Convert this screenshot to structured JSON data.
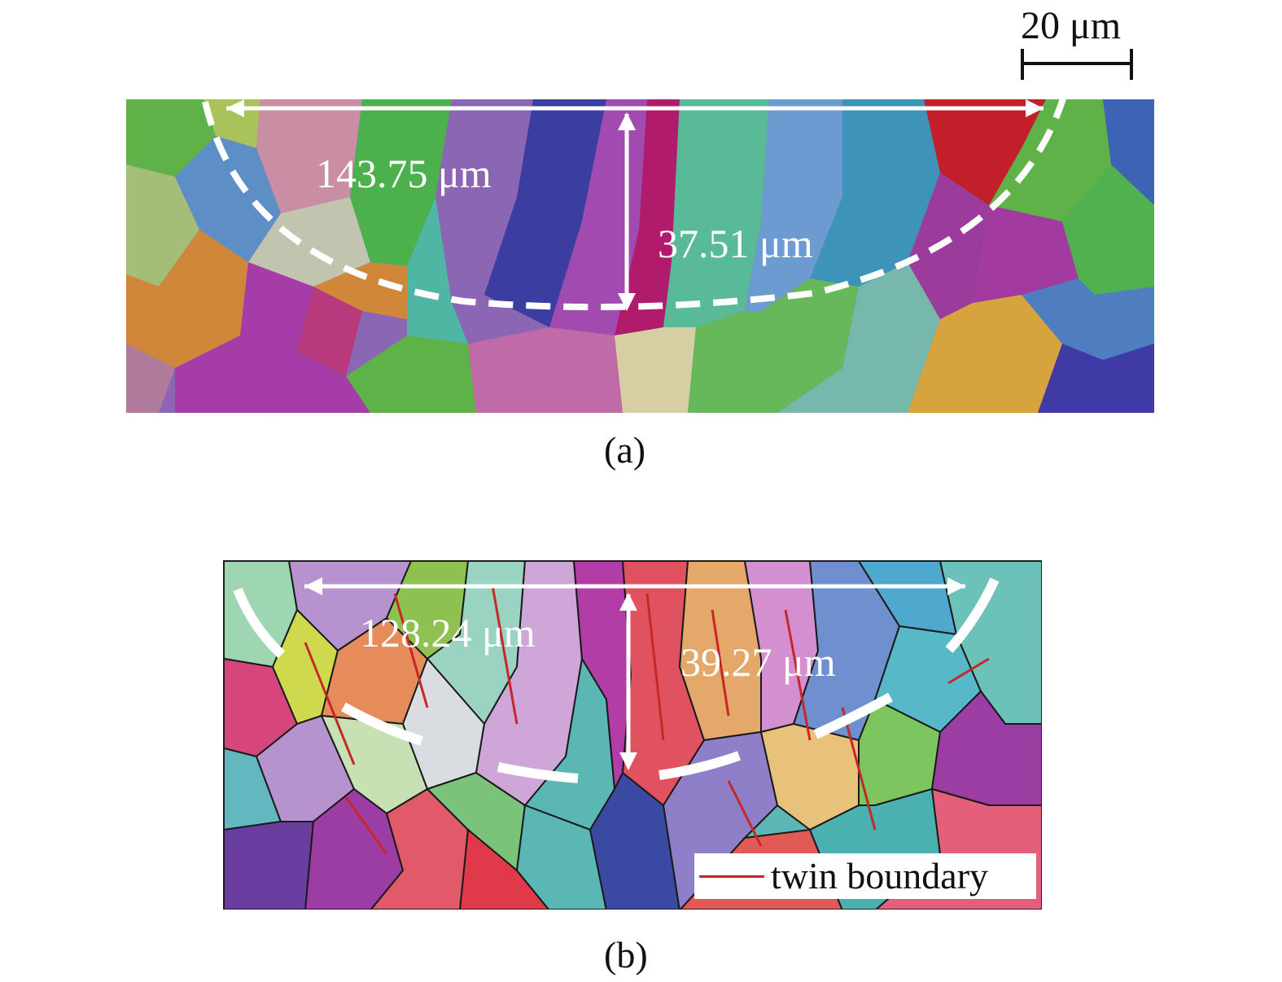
{
  "panel_a": {
    "caption": "(a)",
    "width_label": "143.75 μm",
    "depth_label": "37.51 μm"
  },
  "panel_b": {
    "caption": "(b)",
    "width_label": "128.24 μm",
    "depth_label": "39.27 μm",
    "legend_label": "twin boundary"
  },
  "scale_bar": {
    "label": "20 μm"
  },
  "colors": {
    "annotation": "#ffffff",
    "twin_boundary": "#c62828",
    "grain_boundary": "#1a1a1a"
  }
}
